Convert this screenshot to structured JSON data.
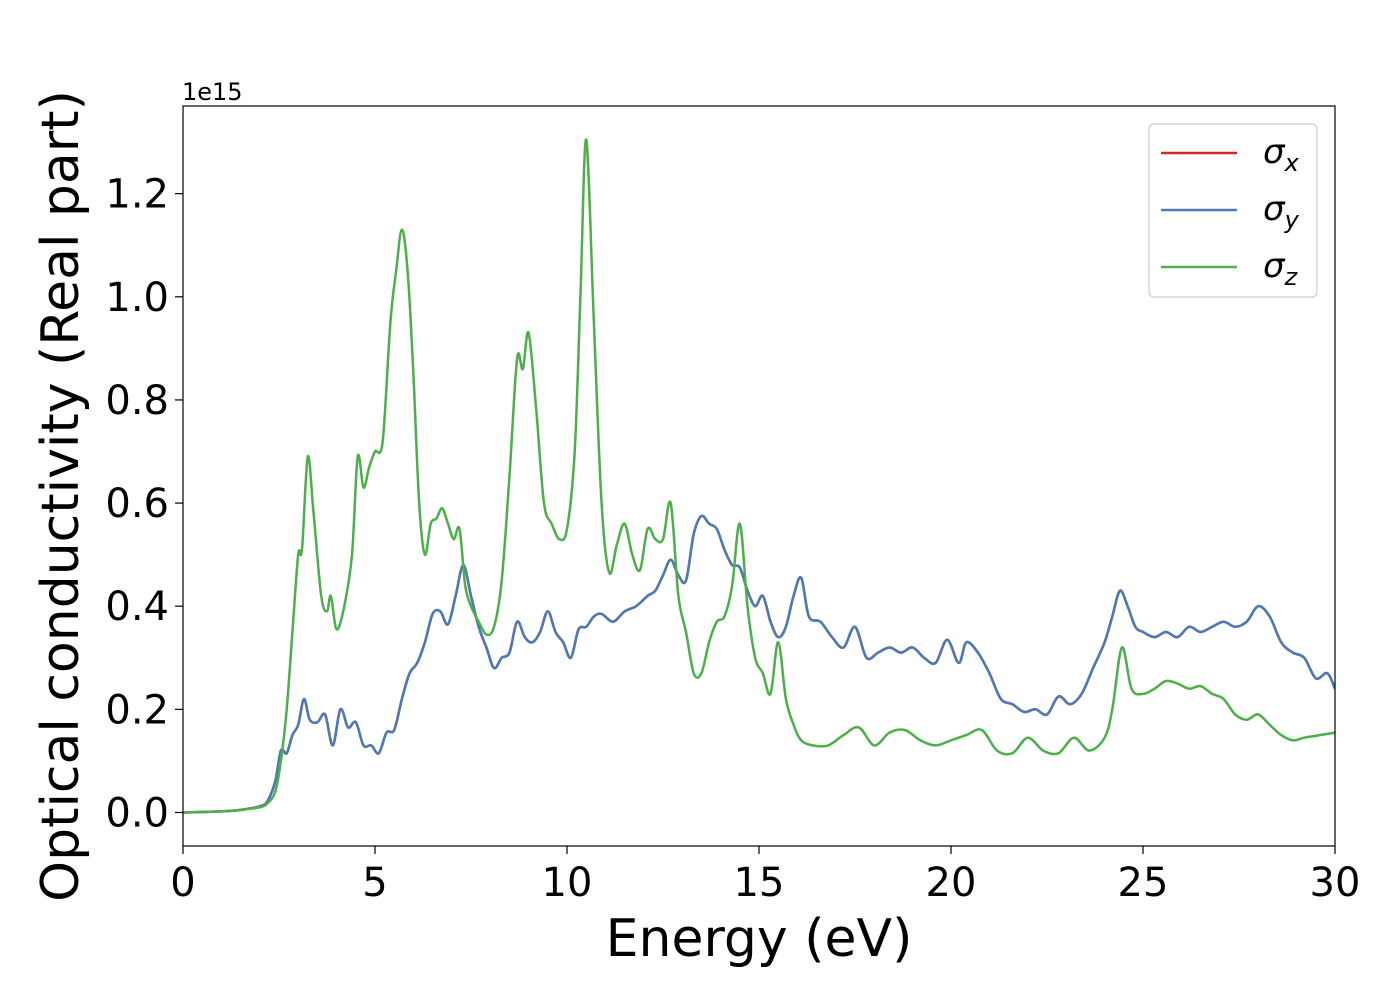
{
  "chart_data": {
    "type": "line",
    "xlabel": "Energy (eV)",
    "ylabel": "Optical conductivity (Real part)",
    "y_offset_text": "1e15",
    "y_multiplier": 1000000000000000.0,
    "xlim": [
      0,
      30
    ],
    "ylim": [
      -0.065,
      1.37
    ],
    "xticks": [
      0,
      5,
      10,
      15,
      20,
      25,
      30
    ],
    "xtick_labels": [
      "0",
      "5",
      "10",
      "15",
      "20",
      "25",
      "30"
    ],
    "yticks": [
      0.0,
      0.2,
      0.4,
      0.6,
      0.8,
      1.0,
      1.2
    ],
    "ytick_labels": [
      "0.0",
      "0.2",
      "0.4",
      "0.6",
      "0.8",
      "1.0",
      "1.2"
    ],
    "grid": false,
    "legend_position": "top-right",
    "series": [
      {
        "name": "σ",
        "subscript": "x",
        "color": "#d62728",
        "x": [
          0,
          1,
          1.5,
          2.0,
          2.2,
          2.4,
          2.55,
          2.7,
          2.85,
          3.0,
          3.15,
          3.3,
          3.5,
          3.7,
          3.9,
          4.1,
          4.3,
          4.5,
          4.7,
          4.9,
          5.1,
          5.3,
          5.5,
          5.7,
          5.9,
          6.1,
          6.3,
          6.5,
          6.7,
          6.9,
          7.1,
          7.3,
          7.5,
          7.7,
          7.9,
          8.1,
          8.3,
          8.5,
          8.7,
          8.9,
          9.1,
          9.3,
          9.5,
          9.7,
          9.9,
          10.1,
          10.3,
          10.5,
          10.7,
          10.9,
          11.2,
          11.5,
          11.8,
          12.1,
          12.3,
          12.5,
          12.7,
          12.9,
          13.1,
          13.3,
          13.5,
          13.7,
          13.9,
          14.1,
          14.3,
          14.5,
          14.7,
          14.9,
          15.1,
          15.3,
          15.5,
          15.7,
          15.9,
          16.1,
          16.3,
          16.6,
          16.9,
          17.2,
          17.5,
          17.8,
          18.1,
          18.4,
          18.7,
          19.0,
          19.3,
          19.6,
          19.9,
          20.2,
          20.4,
          20.7,
          21.0,
          21.3,
          21.6,
          21.9,
          22.2,
          22.5,
          22.8,
          23.1,
          23.4,
          23.7,
          24.0,
          24.2,
          24.4,
          24.6,
          24.8,
          25.0,
          25.3,
          25.6,
          25.9,
          26.2,
          26.5,
          26.8,
          27.1,
          27.4,
          27.7,
          28.0,
          28.3,
          28.6,
          28.9,
          29.2,
          29.5,
          29.8,
          30.0
        ],
        "y": [
          0.0,
          0.002,
          0.005,
          0.012,
          0.022,
          0.06,
          0.12,
          0.115,
          0.15,
          0.17,
          0.22,
          0.18,
          0.175,
          0.19,
          0.13,
          0.2,
          0.165,
          0.175,
          0.13,
          0.13,
          0.115,
          0.155,
          0.16,
          0.22,
          0.27,
          0.29,
          0.33,
          0.385,
          0.39,
          0.365,
          0.42,
          0.48,
          0.42,
          0.36,
          0.32,
          0.28,
          0.3,
          0.31,
          0.37,
          0.34,
          0.33,
          0.35,
          0.39,
          0.35,
          0.33,
          0.3,
          0.355,
          0.36,
          0.38,
          0.385,
          0.37,
          0.39,
          0.4,
          0.42,
          0.43,
          0.46,
          0.49,
          0.46,
          0.45,
          0.54,
          0.575,
          0.56,
          0.55,
          0.51,
          0.48,
          0.475,
          0.43,
          0.4,
          0.42,
          0.37,
          0.34,
          0.36,
          0.42,
          0.455,
          0.38,
          0.37,
          0.34,
          0.32,
          0.36,
          0.3,
          0.31,
          0.32,
          0.31,
          0.32,
          0.3,
          0.29,
          0.335,
          0.29,
          0.33,
          0.31,
          0.27,
          0.22,
          0.21,
          0.195,
          0.2,
          0.19,
          0.225,
          0.21,
          0.23,
          0.28,
          0.33,
          0.38,
          0.43,
          0.4,
          0.36,
          0.35,
          0.34,
          0.35,
          0.34,
          0.36,
          0.35,
          0.36,
          0.37,
          0.36,
          0.37,
          0.4,
          0.38,
          0.33,
          0.31,
          0.3,
          0.26,
          0.27,
          0.24
        ]
      },
      {
        "name": "σ",
        "subscript": "y",
        "color": "#4a7bb4",
        "x": [
          0,
          1,
          1.5,
          2.0,
          2.2,
          2.4,
          2.55,
          2.7,
          2.85,
          3.0,
          3.15,
          3.3,
          3.5,
          3.7,
          3.9,
          4.1,
          4.3,
          4.5,
          4.7,
          4.9,
          5.1,
          5.3,
          5.5,
          5.7,
          5.9,
          6.1,
          6.3,
          6.5,
          6.7,
          6.9,
          7.1,
          7.3,
          7.5,
          7.7,
          7.9,
          8.1,
          8.3,
          8.5,
          8.7,
          8.9,
          9.1,
          9.3,
          9.5,
          9.7,
          9.9,
          10.1,
          10.3,
          10.5,
          10.7,
          10.9,
          11.2,
          11.5,
          11.8,
          12.1,
          12.3,
          12.5,
          12.7,
          12.9,
          13.1,
          13.3,
          13.5,
          13.7,
          13.9,
          14.1,
          14.3,
          14.5,
          14.7,
          14.9,
          15.1,
          15.3,
          15.5,
          15.7,
          15.9,
          16.1,
          16.3,
          16.6,
          16.9,
          17.2,
          17.5,
          17.8,
          18.1,
          18.4,
          18.7,
          19.0,
          19.3,
          19.6,
          19.9,
          20.2,
          20.4,
          20.7,
          21.0,
          21.3,
          21.6,
          21.9,
          22.2,
          22.5,
          22.8,
          23.1,
          23.4,
          23.7,
          24.0,
          24.2,
          24.4,
          24.6,
          24.8,
          25.0,
          25.3,
          25.6,
          25.9,
          26.2,
          26.5,
          26.8,
          27.1,
          27.4,
          27.7,
          28.0,
          28.3,
          28.6,
          28.9,
          29.2,
          29.5,
          29.8,
          30.0
        ],
        "y": [
          0.0,
          0.002,
          0.005,
          0.012,
          0.022,
          0.06,
          0.12,
          0.115,
          0.15,
          0.17,
          0.22,
          0.18,
          0.175,
          0.19,
          0.13,
          0.2,
          0.165,
          0.175,
          0.13,
          0.13,
          0.115,
          0.155,
          0.16,
          0.22,
          0.27,
          0.29,
          0.33,
          0.385,
          0.39,
          0.365,
          0.42,
          0.48,
          0.42,
          0.36,
          0.32,
          0.28,
          0.3,
          0.31,
          0.37,
          0.34,
          0.33,
          0.35,
          0.39,
          0.35,
          0.33,
          0.3,
          0.355,
          0.36,
          0.38,
          0.385,
          0.37,
          0.39,
          0.4,
          0.42,
          0.43,
          0.46,
          0.49,
          0.46,
          0.45,
          0.54,
          0.575,
          0.56,
          0.55,
          0.51,
          0.48,
          0.475,
          0.43,
          0.4,
          0.42,
          0.37,
          0.34,
          0.36,
          0.42,
          0.455,
          0.38,
          0.37,
          0.34,
          0.32,
          0.36,
          0.3,
          0.31,
          0.32,
          0.31,
          0.32,
          0.3,
          0.29,
          0.335,
          0.29,
          0.33,
          0.31,
          0.27,
          0.22,
          0.21,
          0.195,
          0.2,
          0.19,
          0.225,
          0.21,
          0.23,
          0.28,
          0.33,
          0.38,
          0.43,
          0.4,
          0.36,
          0.35,
          0.34,
          0.35,
          0.34,
          0.36,
          0.35,
          0.36,
          0.37,
          0.36,
          0.37,
          0.4,
          0.38,
          0.33,
          0.31,
          0.3,
          0.26,
          0.27,
          0.24
        ]
      },
      {
        "name": "σ",
        "subscript": "z",
        "color": "#4daf4a",
        "x": [
          0,
          1,
          1.5,
          2.0,
          2.2,
          2.4,
          2.55,
          2.7,
          2.85,
          3.0,
          3.1,
          3.25,
          3.4,
          3.6,
          3.75,
          3.85,
          4.0,
          4.2,
          4.4,
          4.55,
          4.7,
          4.85,
          5.0,
          5.2,
          5.4,
          5.55,
          5.7,
          5.85,
          6.0,
          6.15,
          6.3,
          6.45,
          6.6,
          6.75,
          6.9,
          7.05,
          7.2,
          7.35,
          7.5,
          7.7,
          7.9,
          8.1,
          8.3,
          8.5,
          8.7,
          8.85,
          9.0,
          9.2,
          9.4,
          9.6,
          9.8,
          10.0,
          10.2,
          10.35,
          10.5,
          10.7,
          10.9,
          11.1,
          11.3,
          11.5,
          11.7,
          11.9,
          12.1,
          12.3,
          12.5,
          12.7,
          12.9,
          13.1,
          13.3,
          13.5,
          13.7,
          13.9,
          14.1,
          14.3,
          14.5,
          14.7,
          14.9,
          15.1,
          15.3,
          15.5,
          15.7,
          15.9,
          16.1,
          16.4,
          16.8,
          17.2,
          17.6,
          18.0,
          18.4,
          18.8,
          19.2,
          19.6,
          20.0,
          20.4,
          20.8,
          21.2,
          21.6,
          22.0,
          22.4,
          22.8,
          23.2,
          23.6,
          24.0,
          24.2,
          24.45,
          24.7,
          25.0,
          25.3,
          25.6,
          25.9,
          26.2,
          26.5,
          26.8,
          27.1,
          27.4,
          27.7,
          28.0,
          28.3,
          28.6,
          28.9,
          29.2,
          29.6,
          30.0
        ],
        "y": [
          0.0,
          0.002,
          0.005,
          0.01,
          0.018,
          0.04,
          0.1,
          0.2,
          0.35,
          0.5,
          0.51,
          0.69,
          0.58,
          0.42,
          0.39,
          0.42,
          0.355,
          0.4,
          0.5,
          0.69,
          0.63,
          0.67,
          0.7,
          0.72,
          0.95,
          1.05,
          1.13,
          1.05,
          0.85,
          0.6,
          0.5,
          0.56,
          0.57,
          0.59,
          0.56,
          0.53,
          0.55,
          0.44,
          0.4,
          0.37,
          0.345,
          0.36,
          0.45,
          0.65,
          0.88,
          0.86,
          0.93,
          0.78,
          0.6,
          0.56,
          0.53,
          0.55,
          0.7,
          1.0,
          1.305,
          0.95,
          0.6,
          0.465,
          0.52,
          0.56,
          0.5,
          0.47,
          0.55,
          0.53,
          0.53,
          0.6,
          0.42,
          0.35,
          0.27,
          0.27,
          0.33,
          0.37,
          0.38,
          0.44,
          0.56,
          0.4,
          0.3,
          0.27,
          0.23,
          0.33,
          0.22,
          0.17,
          0.14,
          0.13,
          0.13,
          0.15,
          0.165,
          0.13,
          0.155,
          0.16,
          0.14,
          0.13,
          0.14,
          0.15,
          0.16,
          0.12,
          0.115,
          0.145,
          0.12,
          0.115,
          0.145,
          0.12,
          0.145,
          0.2,
          0.32,
          0.24,
          0.23,
          0.24,
          0.255,
          0.25,
          0.24,
          0.245,
          0.23,
          0.22,
          0.19,
          0.18,
          0.19,
          0.17,
          0.15,
          0.14,
          0.145,
          0.15,
          0.155
        ]
      }
    ]
  }
}
